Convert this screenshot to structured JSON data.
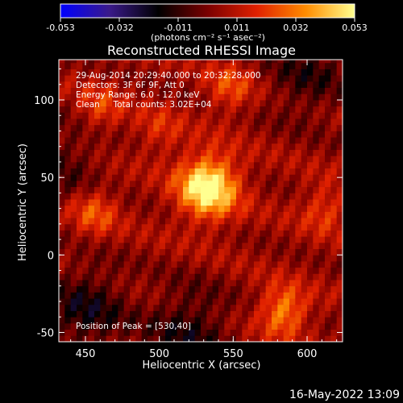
{
  "chart_data": {
    "type": "heatmap",
    "title": "Reconstructed RHESSI Image",
    "xlabel": "Heliocentric X (arcsec)",
    "ylabel": "Heliocentric Y (arcsec)",
    "xlim": [
      432,
      624
    ],
    "ylim": [
      -56,
      126
    ],
    "xticks": [
      450,
      500,
      550,
      600
    ],
    "yticks": [
      -50,
      0,
      50,
      100
    ],
    "colorbar": {
      "min": -0.053,
      "max": 0.053,
      "ticks": [
        "-0.053",
        "-0.032",
        "-0.011",
        "0.011",
        "0.032",
        "0.053"
      ],
      "units": "(photons cm⁻² s⁻¹ asec⁻²)",
      "colors": [
        "#0000ff",
        "#3a1a8a",
        "#000000",
        "#7a0000",
        "#e02000",
        "#ff8c00",
        "#ffff90"
      ]
    },
    "annotations": [
      "29-Aug-2014 20:29:40.000 to 20:32:28.000",
      "Detectors: 3F 6F 9F, Att 0",
      "Energy Range: 6.0 - 12.0 keV",
      "Clean     Total counts: 3.02E+04",
      "Position of Peak = [530,40]"
    ],
    "peak": {
      "x": 530,
      "y": 40
    },
    "sources": [
      {
        "x": 533,
        "y": 44,
        "value": 0.053
      },
      {
        "x": 584,
        "y": -36,
        "value": 0.03
      },
      {
        "x": 456,
        "y": 28,
        "value": 0.02
      },
      {
        "x": 548,
        "y": 108,
        "value": 0.018
      },
      {
        "x": 460,
        "y": 95,
        "value": 0.016
      },
      {
        "x": 612,
        "y": 30,
        "value": 0.016
      },
      {
        "x": 500,
        "y": 80,
        "value": 0.012
      }
    ],
    "negative_regions": [
      {
        "x": 450,
        "y": -35,
        "value": -0.02
      },
      {
        "x": 520,
        "y": -48,
        "value": -0.018
      },
      {
        "x": 600,
        "y": 115,
        "value": -0.015
      },
      {
        "x": 435,
        "y": 60,
        "value": -0.012
      }
    ]
  },
  "footer": {
    "timestamp": "16-May-2022 13:09"
  }
}
